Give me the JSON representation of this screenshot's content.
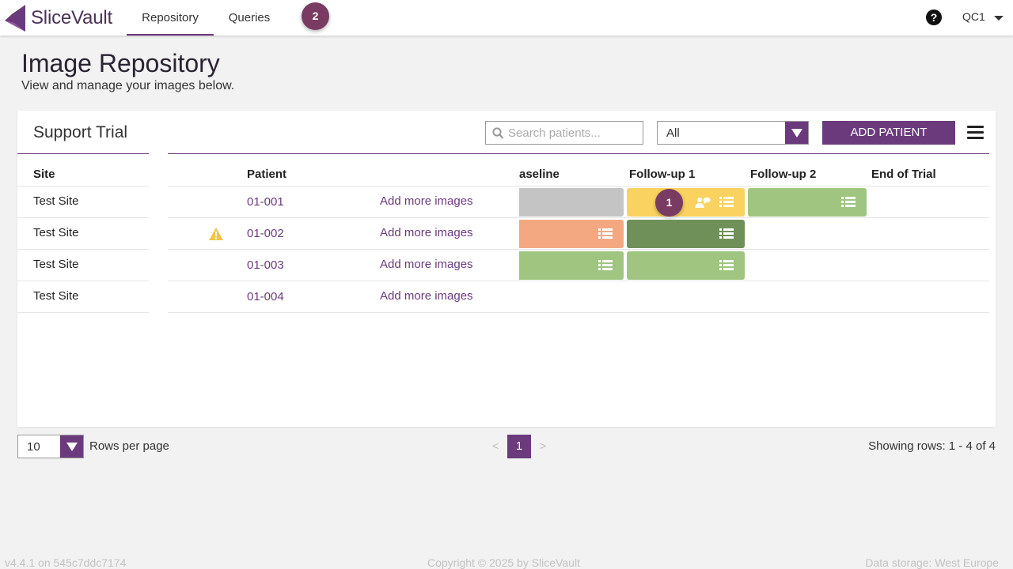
{
  "app": {
    "name": "SliceVault"
  },
  "nav": {
    "tabs": [
      {
        "label": "Repository",
        "active": true
      },
      {
        "label": "Queries",
        "active": false
      }
    ],
    "queries_badge": "2",
    "help_icon": "?",
    "user": "QC1"
  },
  "header": {
    "title": "Image Repository",
    "subtitle": "View and manage your images below."
  },
  "card": {
    "trial_name": "Support Trial",
    "search_placeholder": "Search patients...",
    "filter_value": "All",
    "add_patient_label": "ADD PATIENT"
  },
  "table": {
    "columns": {
      "site": "Site",
      "patient": "Patient",
      "baseline": "aseline",
      "fu1": "Follow-up 1",
      "fu2": "Follow-up 2",
      "eot": "End of Trial"
    },
    "rows": [
      {
        "site": "Test Site",
        "patient": "01-001",
        "action": "Add more images",
        "warning": false,
        "baseline": {
          "color": "#c4c4c4",
          "list_icon": false
        },
        "fu1": {
          "color": "#fad25f",
          "badge": "1",
          "chat_icon": true,
          "list_icon": true
        },
        "fu2": {
          "color": "#9fc581",
          "list_icon": true
        }
      },
      {
        "site": "Test Site",
        "patient": "01-002",
        "action": "Add more images",
        "warning": true,
        "baseline": {
          "color": "#f4a882",
          "list_icon": true
        },
        "fu1": {
          "color": "#6f9159",
          "list_icon": true
        },
        "fu2": null
      },
      {
        "site": "Test Site",
        "patient": "01-003",
        "action": "Add more images",
        "warning": false,
        "baseline": {
          "color": "#9fc581",
          "list_icon": true
        },
        "fu1": {
          "color": "#9fc581",
          "list_icon": true
        },
        "fu2": null
      },
      {
        "site": "Test Site",
        "patient": "01-004",
        "action": "Add more images",
        "warning": false,
        "baseline": null,
        "fu1": null,
        "fu2": null
      }
    ]
  },
  "pagination": {
    "rows_per_page_value": "10",
    "rows_per_page_label": "Rows per page",
    "prev": "<",
    "current_page": "1",
    "next": ">",
    "showing": "Showing rows: 1 - 4 of 4"
  },
  "footer": {
    "version": "v4.4.1 on 545c7ddc7174",
    "copyright": "Copyright © 2025 by SliceVault",
    "storage": "Data storage: West Europe"
  },
  "colors": {
    "brand": "#6b3a7d",
    "badge": "#7a3b63",
    "warning": "#f2c548"
  }
}
